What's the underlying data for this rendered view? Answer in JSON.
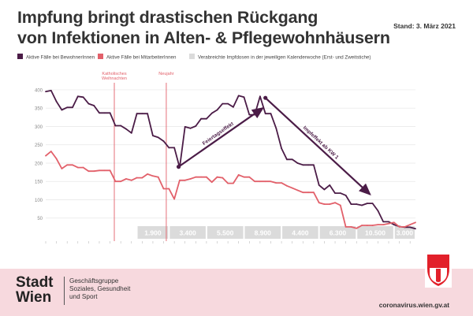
{
  "title_line1": "Impfung bringt drastischen Rückgang",
  "title_line2": "von Infektionen in Alten- & Pflegewohnhäusern",
  "stand": "Stand: 3. März 2021",
  "footer": {
    "logo_line1": "Stadt",
    "logo_line2": "Wien",
    "group_line1": "Geschäftsgruppe",
    "group_line2": "Soziales, Gesundheit",
    "group_line3": "und Sport",
    "url": "coronavirus.wien.gv.at"
  },
  "colors": {
    "residents": "#4b1c47",
    "staff": "#e2606a",
    "vaccine_band": "#dbdbdb",
    "marker": "#e2606a"
  },
  "chart_data": {
    "type": "line",
    "title": "Impfung bringt drastischen Rückgang von Infektionen in Alten- & Pflegewohnhäusern",
    "ylim": [
      0,
      430
    ],
    "yticks": [
      50,
      100,
      150,
      200,
      250,
      300,
      350,
      400
    ],
    "x": [
      0,
      1,
      2,
      3,
      4,
      5,
      6,
      7,
      8,
      9,
      10,
      11,
      12,
      13,
      14,
      15,
      16,
      17,
      18,
      19,
      20,
      21,
      22,
      23,
      24,
      25,
      26,
      27,
      28,
      29,
      30,
      31,
      32,
      33,
      34,
      35,
      36,
      37,
      38,
      39,
      40,
      41,
      42,
      43,
      44,
      45,
      46,
      47,
      48,
      49,
      50,
      51,
      52,
      53,
      54,
      55,
      56,
      57,
      58,
      59,
      60,
      61,
      62,
      63,
      64,
      65,
      66,
      67,
      68,
      69
    ],
    "series": [
      {
        "name": "Aktive Fälle bei BewohnerInnen",
        "color": "#4b1c47",
        "values": [
          395,
          398,
          368,
          345,
          352,
          352,
          382,
          380,
          362,
          357,
          337,
          337,
          337,
          302,
          302,
          293,
          282,
          335,
          335,
          335,
          275,
          270,
          260,
          242,
          242,
          188,
          299,
          295,
          301,
          321,
          321,
          336,
          345,
          362,
          362,
          353,
          384,
          380,
          332,
          332,
          382,
          335,
          335,
          295,
          240,
          210,
          210,
          200,
          195,
          195,
          195,
          140,
          128,
          140,
          118,
          118,
          112,
          88,
          88,
          85,
          90,
          90,
          70,
          40,
          40,
          32,
          27,
          25,
          25,
          21
        ]
      },
      {
        "name": "Aktive Fälle bei MitarbeiterInnen",
        "color": "#e2606a",
        "values": [
          220,
          232,
          212,
          185,
          195,
          195,
          188,
          188,
          178,
          178,
          180,
          180,
          180,
          150,
          150,
          157,
          153,
          160,
          160,
          170,
          165,
          162,
          130,
          130,
          102,
          153,
          153,
          157,
          162,
          162,
          162,
          148,
          162,
          160,
          145,
          145,
          168,
          162,
          162,
          150,
          150,
          150,
          150,
          146,
          146,
          138,
          132,
          126,
          120,
          120,
          120,
          92,
          88,
          88,
          92,
          85,
          26,
          26,
          22,
          30,
          30,
          30,
          32,
          32,
          35,
          38,
          26,
          26,
          32,
          38
        ]
      }
    ],
    "legend": [
      "Aktive Fälle bei BewohnerInnen",
      "Aktive Fälle bei MitarbeiterInnen",
      "Verabreichte Impfdosen in der jeweiligen Kalenderwoche (Erst- und Zweitstiche)"
    ],
    "markers": [
      {
        "x": 12.8,
        "label_line1": "Katholisches",
        "label_line2": "Weihnachten"
      },
      {
        "x": 22.5,
        "label_line1": "Neujahr",
        "label_line2": ""
      }
    ],
    "vaccine_doses": [
      {
        "start": 17,
        "end": 23,
        "label": "1.900"
      },
      {
        "start": 23,
        "end": 30,
        "label": "3.400"
      },
      {
        "start": 30,
        "end": 37,
        "label": "5.500"
      },
      {
        "start": 37,
        "end": 44,
        "label": "8.900"
      },
      {
        "start": 44,
        "end": 51,
        "label": "4.400"
      },
      {
        "start": 51,
        "end": 58,
        "label": "6.300"
      },
      {
        "start": 58,
        "end": 65,
        "label": "10.500"
      },
      {
        "start": 65,
        "end": 69,
        "label": "3.000"
      }
    ],
    "annotations": [
      {
        "text": "Feiertagseffekt",
        "from": [
          24.8,
          190
        ],
        "to": [
          40.5,
          350
        ]
      },
      {
        "text": "Impfeffekt ab KW 1",
        "from": [
          41,
          378
        ],
        "to": [
          60.5,
          115
        ]
      }
    ]
  }
}
